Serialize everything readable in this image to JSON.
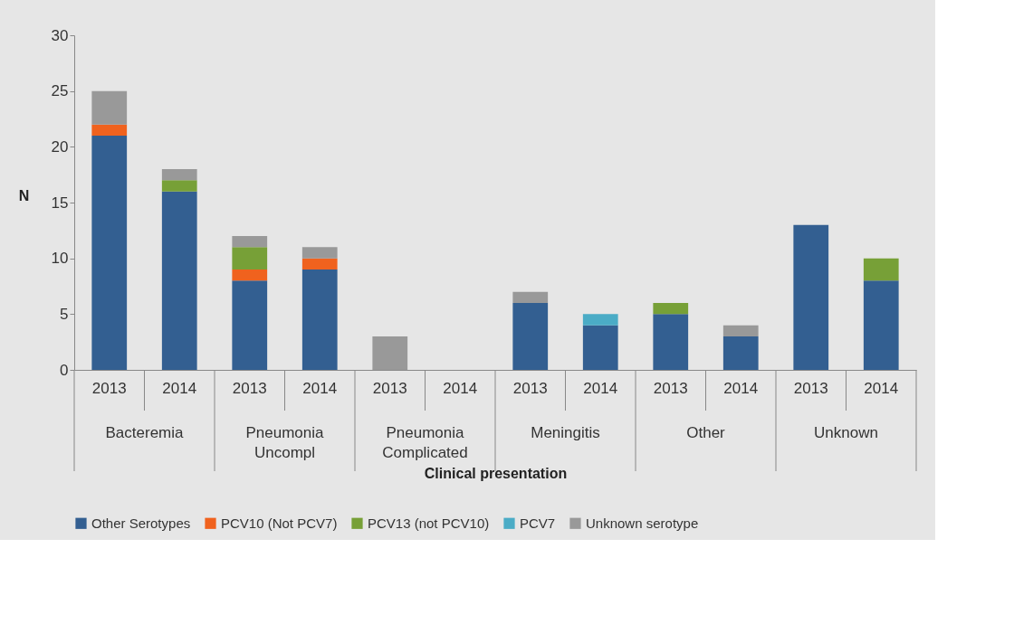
{
  "chart_data": {
    "type": "bar",
    "stacked": true,
    "xlabel": "Clinical presentation",
    "ylabel": "N",
    "categories": [
      "2013",
      "2014",
      "2013",
      "2014",
      "2013",
      "2014",
      "2013",
      "2014",
      "2013",
      "2014",
      "2013",
      "2014"
    ],
    "annotations": [
      "Bacteremia",
      "Pneumonia Uncompl",
      "Pneumonia Complicated",
      "Meningitis",
      "Other",
      "Unknown"
    ],
    "series": [
      {
        "name": "Other Serotypes",
        "color": "#335f91",
        "values": [
          21,
          16,
          8,
          9,
          0,
          0,
          6,
          4,
          5,
          3,
          13,
          8
        ]
      },
      {
        "name": "PCV10 (Not PCV7)",
        "color": "#f0621e",
        "values": [
          1,
          0,
          1,
          1,
          0,
          0,
          0,
          0,
          0,
          0,
          0,
          0
        ]
      },
      {
        "name": "PCV13 (not PCV10)",
        "color": "#77a037",
        "values": [
          0,
          1,
          2,
          0,
          0,
          0,
          0,
          0,
          1,
          0,
          0,
          2
        ]
      },
      {
        "name": "PCV7",
        "color": "#4bacc6",
        "values": [
          0,
          0,
          0,
          0,
          0,
          0,
          0,
          1,
          0,
          0,
          0,
          0
        ]
      },
      {
        "name": "Unknown serotype",
        "color": "#999999",
        "values": [
          3,
          1,
          1,
          1,
          3,
          0,
          1,
          0,
          0,
          1,
          0,
          0
        ]
      }
    ],
    "ylim": [
      0,
      30
    ],
    "yticks": [
      0,
      5,
      10,
      15,
      20,
      25,
      30
    ],
    "grid": false,
    "legend": "bottom"
  }
}
